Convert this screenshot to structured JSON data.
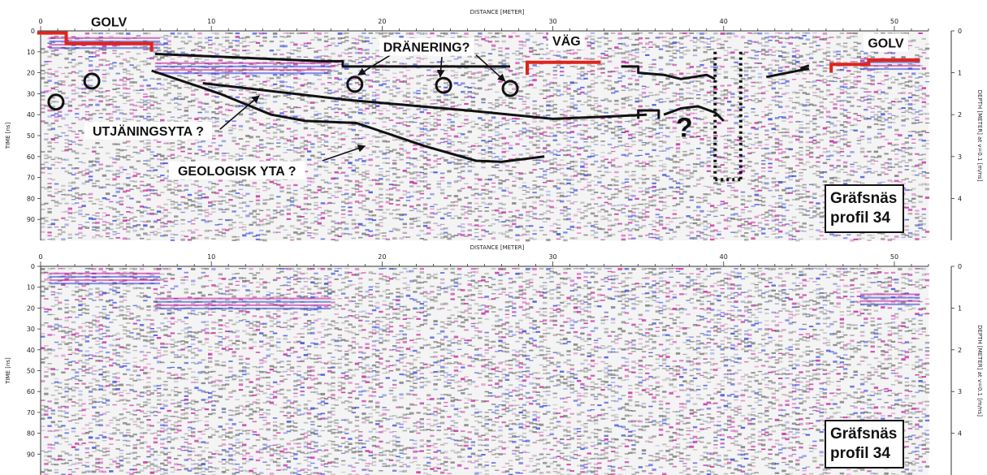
{
  "chart_data": [
    {
      "type": "heatmap",
      "xlabel": "DISTANCE [METER]",
      "ylabel": "TIME [ns]",
      "y2label": "DEPTH [METER] at v=0.1 [m/ns]",
      "xlim": [
        0,
        52
      ],
      "ylim": [
        0,
        100
      ],
      "x_ticks": [
        0,
        10,
        20,
        30,
        40,
        50
      ],
      "y_ticks": [
        0,
        10,
        20,
        30,
        40,
        50,
        60,
        70,
        80,
        90
      ],
      "depth_ticks": [
        0,
        1,
        2,
        3,
        4
      ],
      "colors": {
        "positive": "#c2189a",
        "negative": "#2b3fd8",
        "gray": "#6f6f6f"
      },
      "info_box": [
        "Gräfsnäs",
        "profil 34"
      ],
      "labels": [
        {
          "text": "GOLV",
          "x": 4,
          "t": -4
        },
        {
          "text": "VÄG",
          "x": 30.8,
          "t": 5
        },
        {
          "text": "GOLV",
          "x": 49.5,
          "t": 6
        },
        {
          "text": "DRÄNERING?",
          "x": 22.6,
          "t": 8
        },
        {
          "text": "UTJÄNINGSYTA ?",
          "x": 6.3,
          "t": 48
        },
        {
          "text": "GEOLOGISK YTA ?",
          "x": 11.5,
          "t": 67
        },
        {
          "text": "?",
          "x": 37.7,
          "t": 46
        }
      ],
      "red_lines": [
        [
          [
            -0.2,
            1
          ],
          [
            1.5,
            1
          ],
          [
            1.5,
            6
          ],
          [
            6.5,
            6
          ],
          [
            6.5,
            10
          ]
        ],
        [
          [
            28.5,
            21
          ],
          [
            28.5,
            15
          ],
          [
            32.8,
            15
          ]
        ],
        [
          [
            46.3,
            20
          ],
          [
            46.3,
            16
          ],
          [
            48.5,
            16
          ],
          [
            48.5,
            14
          ],
          [
            51.5,
            14
          ]
        ]
      ],
      "black_lines": [
        [
          [
            6.7,
            11
          ],
          [
            16.5,
            14.5
          ],
          [
            17.7,
            14.5
          ],
          [
            17.7,
            17
          ],
          [
            27.5,
            17
          ]
        ],
        [
          [
            6.5,
            19
          ],
          [
            10.5,
            30
          ],
          [
            13.5,
            40
          ],
          [
            15.5,
            43
          ],
          [
            18.5,
            44
          ],
          [
            22.5,
            55
          ],
          [
            25.5,
            62
          ],
          [
            27,
            62.5
          ],
          [
            29.5,
            60
          ]
        ],
        [
          [
            9.5,
            25
          ],
          [
            18,
            33
          ],
          [
            25,
            38
          ],
          [
            30,
            42
          ],
          [
            33,
            41
          ],
          [
            35.5,
            40
          ]
        ],
        [
          [
            34,
            17
          ],
          [
            35,
            17
          ],
          [
            35,
            20
          ],
          [
            36.5,
            21
          ],
          [
            37.5,
            23
          ],
          [
            39,
            21
          ],
          [
            39.5,
            23
          ]
        ],
        [
          [
            35,
            42
          ],
          [
            35,
            38
          ],
          [
            36.2,
            38
          ],
          [
            36.2,
            42
          ]
        ],
        [
          [
            36.5,
            40
          ],
          [
            37.5,
            37
          ],
          [
            38.5,
            36
          ],
          [
            39.5,
            39
          ],
          [
            40,
            43
          ]
        ],
        [
          [
            42.5,
            22
          ],
          [
            45,
            18
          ]
        ],
        [
          [
            44.5,
            18
          ],
          [
            45,
            16.5
          ]
        ]
      ],
      "dotted_lines": [
        [
          [
            39.5,
            10
          ],
          [
            39.5,
            72
          ]
        ],
        [
          [
            41,
            10
          ],
          [
            41,
            72
          ]
        ],
        [
          [
            39.5,
            71
          ],
          [
            41,
            71
          ]
        ]
      ],
      "circles": [
        [
          0.9,
          34
        ],
        [
          3,
          24
        ],
        [
          18.4,
          25.5
        ],
        [
          23.6,
          26
        ],
        [
          27.5,
          27.5
        ]
      ],
      "arrows": [
        [
          [
            21.5,
            6.5
          ],
          [
            18.6,
            21
          ]
        ],
        [
          [
            23.5,
            12.5
          ],
          [
            23.4,
            22
          ]
        ],
        [
          [
            25.5,
            11.5
          ],
          [
            27.2,
            24
          ]
        ],
        [
          [
            10.5,
            47
          ],
          [
            12.8,
            31
          ]
        ],
        [
          [
            16.5,
            62
          ],
          [
            19,
            55
          ]
        ]
      ]
    },
    {
      "type": "heatmap",
      "xlabel": "DISTANCE [METER]",
      "ylabel": "TIME [ns]",
      "y2label": "DEPTH [METER] at v=0.1 [m/ns]",
      "xlim": [
        0,
        52
      ],
      "ylim": [
        0,
        100
      ],
      "x_ticks": [
        0,
        10,
        20,
        30,
        40,
        50
      ],
      "y_ticks": [
        0,
        10,
        20,
        30,
        40,
        50,
        60,
        70,
        80,
        90
      ],
      "depth_ticks": [
        0,
        1,
        2,
        3,
        4
      ],
      "info_box": [
        "Gräfsnäs",
        "profil 34"
      ]
    }
  ]
}
